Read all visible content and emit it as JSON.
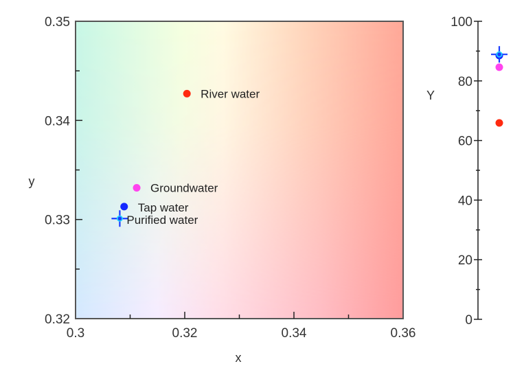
{
  "chart_data": [
    {
      "type": "scatter",
      "title": "",
      "xlabel": "x",
      "ylabel": "y",
      "xlim": [
        0.3,
        0.36
      ],
      "ylim": [
        0.32,
        0.35
      ],
      "xticks": [
        0.3,
        0.32,
        0.34,
        0.36
      ],
      "xtick_labels": [
        "0.3",
        "0.32",
        "0.34",
        "0.36"
      ],
      "yticks": [
        0.32,
        0.33,
        0.34,
        0.35
      ],
      "ytick_labels": [
        "0.32",
        "0.33",
        "0.34",
        "0.35"
      ],
      "x_minor_step": 0.01,
      "y_minor_step": 0.005,
      "grid": false,
      "background": "chromaticity-gradient",
      "series": [
        {
          "name": "River water",
          "x": 0.3204,
          "y": 0.3427,
          "marker": "dot",
          "color": "#ff2a10"
        },
        {
          "name": "Groundwater",
          "x": 0.3112,
          "y": 0.3332,
          "marker": "dot",
          "color": "#ff44ee"
        },
        {
          "name": "Tap water",
          "x": 0.3089,
          "y": 0.3313,
          "marker": "dot",
          "color": "#1428ff"
        },
        {
          "name": "Purified water",
          "x": 0.3081,
          "y": 0.3301,
          "marker": "cross",
          "color": "#1a3cff",
          "center_color": "#22d8ff"
        }
      ]
    },
    {
      "type": "scatter",
      "title": "",
      "xlabel": "",
      "ylabel": "Y",
      "ylim": [
        0,
        100
      ],
      "yticks": [
        0,
        20,
        40,
        60,
        80,
        100
      ],
      "ytick_labels": [
        "0",
        "20",
        "40",
        "60",
        "80",
        "100"
      ],
      "y_minor_step": 10,
      "grid": false,
      "series": [
        {
          "name": "Purified water",
          "y": 88.9,
          "marker": "cross",
          "color": "#1a3cff",
          "center_color": "#22d8ff"
        },
        {
          "name": "Tap water",
          "y": 88.5,
          "marker": "dot",
          "color": "#1428ff"
        },
        {
          "name": "Groundwater",
          "y": 84.6,
          "marker": "dot",
          "color": "#ff44ee"
        },
        {
          "name": "River water",
          "y": 65.9,
          "marker": "dot",
          "color": "#ff2a10"
        }
      ]
    }
  ],
  "labels": {
    "main_xlabel": "x",
    "main_ylabel": "y",
    "side_ylabel": "Y"
  },
  "colors": {
    "axis": "#555555",
    "text": "#333333"
  }
}
